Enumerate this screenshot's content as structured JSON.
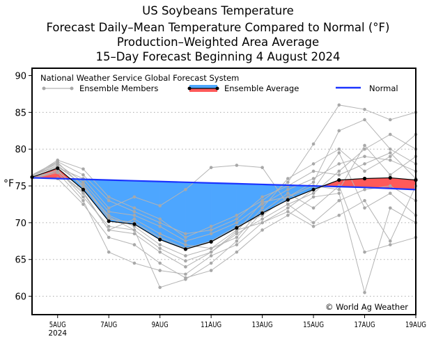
{
  "chart_data": {
    "type": "line",
    "title": "US Soybeans Temperature",
    "subtitles": [
      "Forecast Daily–Mean Temperature Compared to Normal (°F)",
      "Production–Weighted Area Average",
      "15–Day Forecast Beginning 4 August 2024"
    ],
    "ylabel": "°F",
    "xlabel": "",
    "ylim": [
      57.5,
      91
    ],
    "xlim": [
      4,
      19
    ],
    "yticks": [
      60,
      65,
      70,
      75,
      80,
      85,
      90
    ],
    "xticks": [
      {
        "day": 5,
        "label": "5AUG",
        "sublabel": "2024"
      },
      {
        "day": 7,
        "label": "7AUG"
      },
      {
        "day": 9,
        "label": "9AUG"
      },
      {
        "day": 11,
        "label": "11AUG"
      },
      {
        "day": 13,
        "label": "13AUG"
      },
      {
        "day": 15,
        "label": "15AUG"
      },
      {
        "day": 17,
        "label": "17AUG"
      },
      {
        "day": 19,
        "label": "19AUG"
      }
    ],
    "grid": "horizontal-dotted",
    "legend": {
      "source": "National Weather Service Global Forecast System",
      "members_label": "Ensemble Members",
      "average_label": "Ensemble Average",
      "normal_label": "Normal",
      "placement": "top"
    },
    "annotation": "© World Ag Weather",
    "x": [
      4,
      5,
      6,
      7,
      8,
      9,
      10,
      11,
      12,
      13,
      14,
      15,
      16,
      17,
      18,
      19
    ],
    "ensemble_average": [
      76.2,
      77.4,
      74.5,
      70.2,
      69.8,
      67.7,
      66.4,
      67.4,
      69.3,
      71.3,
      73.1,
      74.5,
      75.8,
      76.0,
      76.1,
      75.8
    ],
    "normal": [
      76.1,
      76.0,
      75.9,
      75.8,
      75.7,
      75.6,
      75.5,
      75.4,
      75.3,
      75.2,
      75.1,
      75.0,
      74.9,
      74.8,
      74.65,
      74.5
    ],
    "members": [
      [
        76.3,
        78.5,
        77.3,
        73.5,
        72.0,
        70.5,
        68.0,
        69.5,
        71.0,
        73.0,
        75.5,
        80.7,
        86.0,
        85.4,
        84.0,
        85.0
      ],
      [
        76.0,
        77.0,
        74.0,
        69.0,
        68.5,
        66.0,
        64.0,
        66.0,
        68.5,
        70.5,
        72.5,
        74.0,
        77.0,
        80.0,
        82.0,
        80.0
      ],
      [
        76.5,
        78.0,
        75.5,
        71.5,
        71.0,
        69.5,
        67.5,
        68.5,
        70.0,
        72.5,
        74.5,
        76.0,
        78.0,
        79.0,
        78.5,
        77.0
      ],
      [
        76.2,
        76.0,
        72.5,
        68.0,
        67.0,
        64.5,
        62.5,
        63.5,
        66.0,
        69.0,
        71.0,
        73.5,
        74.0,
        60.5,
        72.0,
        70.0
      ],
      [
        76.4,
        77.8,
        75.0,
        70.5,
        70.0,
        68.0,
        66.5,
        67.5,
        69.5,
        71.0,
        73.5,
        75.5,
        82.5,
        84.0,
        80.0,
        78.0
      ],
      [
        75.9,
        77.2,
        73.5,
        69.5,
        69.0,
        61.2,
        62.3,
        64.5,
        67.5,
        71.5,
        74.0,
        72.0,
        75.0,
        66.0,
        67.0,
        68.0
      ],
      [
        76.1,
        77.5,
        76.0,
        72.0,
        73.5,
        72.3,
        74.5,
        77.5,
        77.8,
        77.5,
        72.5,
        70.0,
        73.0,
        74.5,
        75.0,
        73.0
      ],
      [
        76.3,
        78.2,
        74.8,
        71.0,
        69.5,
        67.0,
        65.5,
        66.5,
        68.0,
        72.0,
        76.0,
        78.0,
        80.0,
        77.0,
        79.0,
        82.0
      ],
      [
        76.0,
        76.8,
        73.0,
        66.0,
        64.5,
        63.5,
        63.0,
        65.5,
        67.0,
        70.0,
        71.5,
        69.5,
        71.0,
        73.0,
        67.5,
        75.0
      ],
      [
        76.5,
        78.3,
        76.5,
        73.0,
        71.5,
        70.0,
        68.5,
        69.0,
        70.5,
        73.5,
        75.0,
        77.0,
        76.5,
        78.0,
        79.5,
        76.0
      ],
      [
        76.2,
        77.0,
        74.2,
        69.0,
        70.5,
        68.5,
        67.0,
        66.5,
        69.0,
        70.0,
        72.0,
        74.5,
        79.5,
        72.0,
        74.0,
        71.0
      ],
      [
        76.4,
        77.6,
        75.2,
        70.8,
        69.0,
        66.5,
        64.8,
        66.0,
        68.8,
        72.8,
        73.5,
        75.0,
        74.5,
        80.5,
        76.5,
        79.0
      ]
    ],
    "colors": {
      "members": "#b4b4b4",
      "below": "#4da6ff",
      "above": "#ff5a5a",
      "normal": "#1a33ff",
      "average": "#000000"
    }
  }
}
